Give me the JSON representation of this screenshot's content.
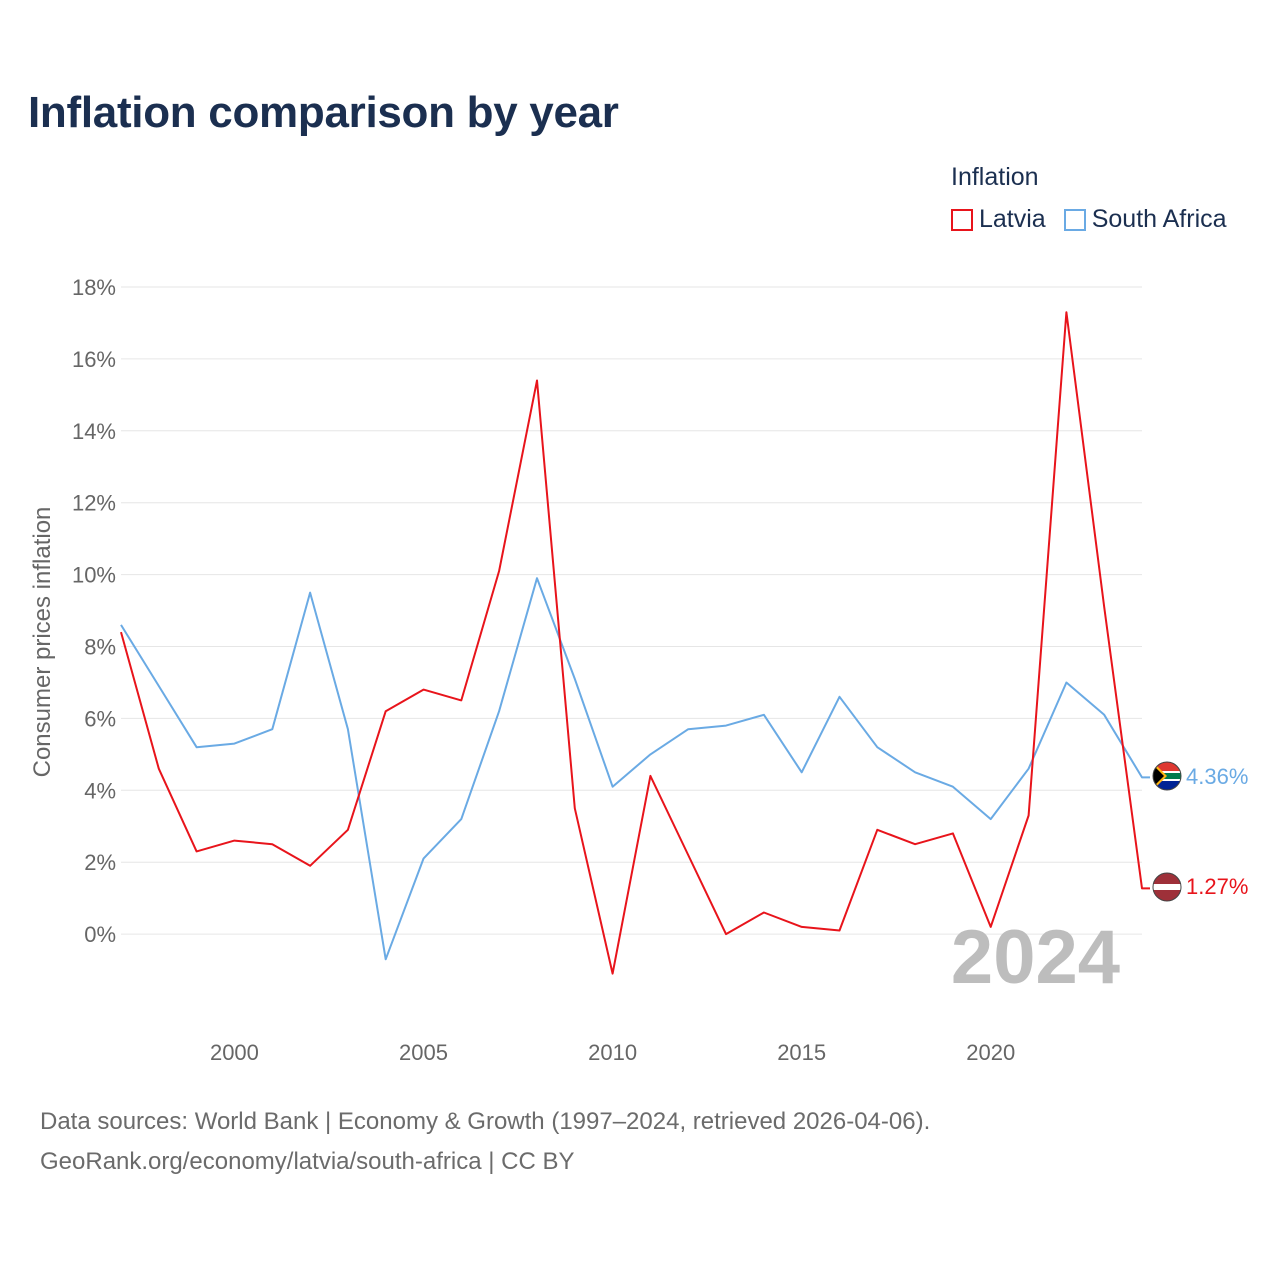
{
  "title": "Inflation comparison by year",
  "legend": {
    "title": "Inflation",
    "items": [
      {
        "label": "Latvia",
        "color": "#e8141b"
      },
      {
        "label": "South Africa",
        "color": "#6aaae4"
      }
    ]
  },
  "footer": {
    "line1": "Data sources: World Bank | Economy & Growth (1997–2024, retrieved 2026-04-06).",
    "line2": "GeoRank.org/economy/latvia/south-africa | CC BY"
  },
  "chart_data": {
    "type": "line",
    "title": "Inflation comparison by year",
    "xlabel": "",
    "ylabel": "Consumer prices inflation",
    "xlim": [
      1997,
      2024
    ],
    "ylim": [
      -2,
      18
    ],
    "yticks": [
      0,
      2,
      4,
      6,
      8,
      10,
      12,
      14,
      16,
      18
    ],
    "ytick_labels": [
      "0%",
      "2%",
      "4%",
      "6%",
      "8%",
      "10%",
      "12%",
      "14%",
      "16%",
      "18%"
    ],
    "xticks": [
      2000,
      2005,
      2010,
      2015,
      2020
    ],
    "xtick_labels": [
      "2000",
      "2005",
      "2010",
      "2015",
      "2020"
    ],
    "grid": true,
    "legend_position": "top-right",
    "year_watermark": "2024",
    "x": [
      1997,
      1998,
      1999,
      2000,
      2001,
      2002,
      2003,
      2004,
      2005,
      2006,
      2007,
      2008,
      2009,
      2010,
      2011,
      2012,
      2013,
      2014,
      2015,
      2016,
      2017,
      2018,
      2019,
      2020,
      2021,
      2022,
      2023,
      2024
    ],
    "series": [
      {
        "name": "Latvia",
        "color": "#e8141b",
        "end_label": "1.27%",
        "values": [
          8.4,
          4.6,
          2.3,
          2.6,
          2.5,
          1.9,
          2.9,
          6.2,
          6.8,
          6.5,
          10.1,
          15.4,
          3.5,
          -1.1,
          4.4,
          2.2,
          0.0,
          0.6,
          0.2,
          0.1,
          2.9,
          2.5,
          2.8,
          0.2,
          3.3,
          17.3,
          9.1,
          1.27
        ]
      },
      {
        "name": "South Africa",
        "color": "#6aaae4",
        "end_label": "4.36%",
        "values": [
          8.6,
          6.9,
          5.2,
          5.3,
          5.7,
          9.5,
          5.7,
          -0.7,
          2.1,
          3.2,
          6.2,
          9.9,
          7.1,
          4.1,
          5.0,
          5.7,
          5.8,
          6.1,
          4.5,
          6.6,
          5.2,
          4.5,
          4.1,
          3.2,
          4.6,
          7.0,
          6.1,
          4.36
        ]
      }
    ]
  }
}
